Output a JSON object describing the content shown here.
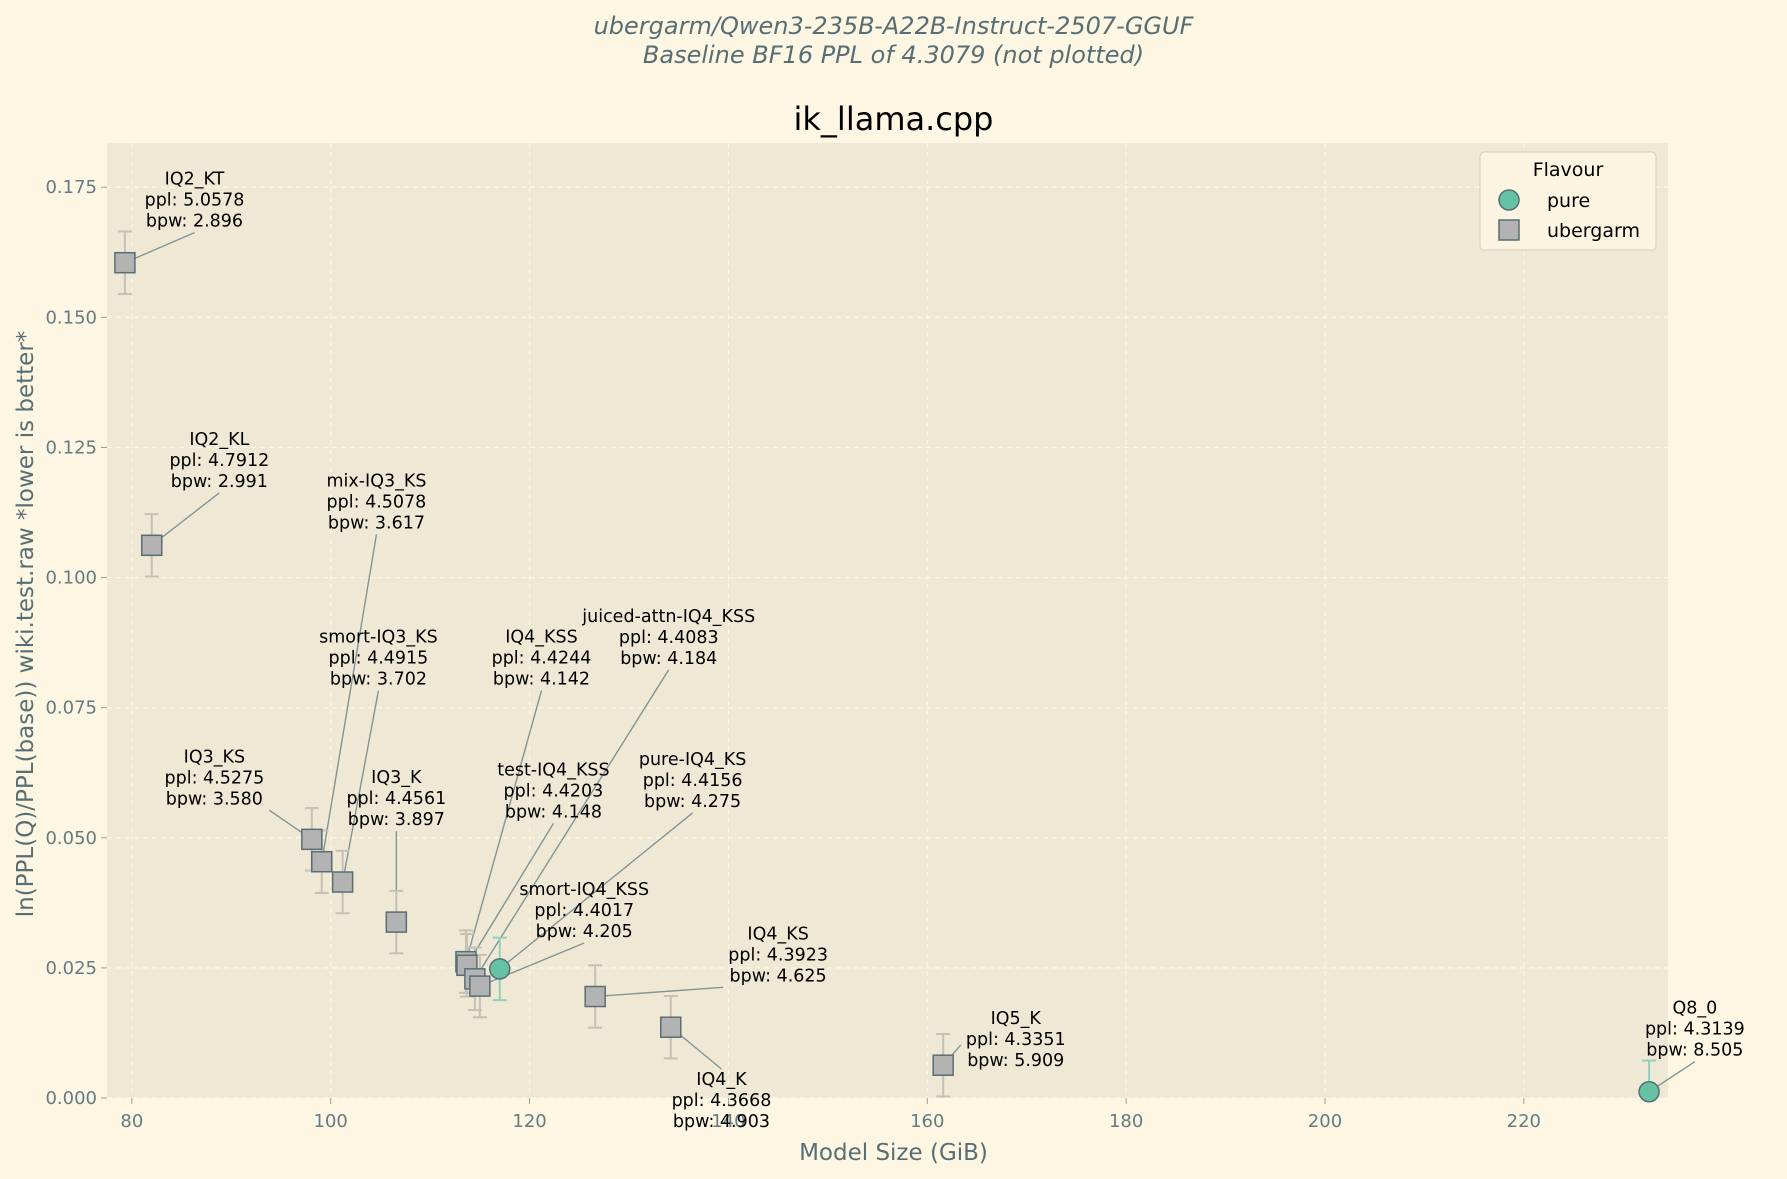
{
  "chart_data": {
    "type": "scatter",
    "suptitle": [
      "ubergarm/Qwen3-235B-A22B-Instruct-2507-GGUF",
      "Baseline BF16 PPL of 4.3079 (not plotted)"
    ],
    "title": "ik_llama.cpp",
    "xlabel": "Model Size (GiB)",
    "ylabel": "ln(PPL(Q)/PPL(base)) wiki.test.raw *lower is better*",
    "xlim": [
      77.5,
      234.5
    ],
    "ylim": [
      0.0,
      0.1835
    ],
    "x_ticks": [
      80,
      100,
      120,
      140,
      160,
      180,
      200,
      220
    ],
    "x_tick_labels": [
      "80",
      "100",
      "120",
      "140",
      "160",
      "180",
      "200",
      "220"
    ],
    "y_ticks": [
      0.0,
      0.025,
      0.05,
      0.075,
      0.1,
      0.125,
      0.15,
      0.175
    ],
    "y_tick_labels": [
      "0.000",
      "0.025",
      "0.050",
      "0.075",
      "0.100",
      "0.125",
      "0.150",
      "0.175"
    ],
    "grid": true,
    "legend": {
      "title": "Flavour",
      "position": "top-right",
      "entries": [
        {
          "label": "pure",
          "marker": "circle",
          "color": "#66c2a5"
        },
        {
          "label": "ubergarm",
          "marker": "square",
          "color": "#b3b3b3"
        }
      ]
    },
    "colors": {
      "pure": "#66c2a5",
      "ubergarm": "#b3b3b3",
      "edge": "#586e75",
      "error_ubergarm": "#c5c0b4",
      "error_pure": "#8fd0bb",
      "leader": "#839496"
    },
    "points": [
      {
        "name": "IQ2_KT",
        "flavour": "ubergarm",
        "x": 79.3,
        "y": 0.1605,
        "yerr": 0.006,
        "label": [
          "IQ2_KT",
          "ppl: 5.0578",
          "bpw: 2.896"
        ],
        "label_at": [
          86.3,
          0.1755
        ]
      },
      {
        "name": "IQ2_KL",
        "flavour": "ubergarm",
        "x": 82.0,
        "y": 0.1062,
        "yerr": 0.006,
        "label": [
          "IQ2_KL",
          "ppl: 4.7912",
          "bpw: 2.991"
        ],
        "label_at": [
          88.8,
          0.1255
        ]
      },
      {
        "name": "mix-IQ3_KS",
        "flavour": "ubergarm",
        "x": 99.1,
        "y": 0.0454,
        "yerr": 0.006,
        "label": [
          "mix-IQ3_KS",
          "ppl: 4.5078",
          "bpw: 3.617"
        ],
        "label_at": [
          104.6,
          0.1175
        ]
      },
      {
        "name": "smort-IQ3_KS",
        "flavour": "ubergarm",
        "x": 101.2,
        "y": 0.0415,
        "yerr": 0.006,
        "label": [
          "smort-IQ3_KS",
          "ppl: 4.4915",
          "bpw: 3.702"
        ],
        "label_at": [
          104.8,
          0.0875
        ]
      },
      {
        "name": "IQ3_KS",
        "flavour": "ubergarm",
        "x": 98.1,
        "y": 0.0497,
        "yerr": 0.006,
        "label": [
          "IQ3_KS",
          "ppl: 4.5275",
          "bpw: 3.580"
        ],
        "label_at": [
          88.3,
          0.0645
        ]
      },
      {
        "name": "IQ3_K",
        "flavour": "ubergarm",
        "x": 106.6,
        "y": 0.0338,
        "yerr": 0.006,
        "label": [
          "IQ3_K",
          "ppl: 4.4561",
          "bpw: 3.897"
        ],
        "label_at": [
          106.6,
          0.0605
        ]
      },
      {
        "name": "IQ4_KSS",
        "flavour": "ubergarm",
        "x": 113.6,
        "y": 0.0262,
        "yerr": 0.006,
        "label": [
          "IQ4_KSS",
          "ppl: 4.4244",
          "bpw: 4.142"
        ],
        "label_at": [
          121.2,
          0.0875
        ]
      },
      {
        "name": "test-IQ4_KSS",
        "flavour": "ubergarm",
        "x": 113.7,
        "y": 0.0255,
        "yerr": 0.006,
        "label": [
          "test-IQ4_KSS",
          "ppl: 4.4203",
          "bpw: 4.148"
        ],
        "label_at": [
          122.4,
          0.062
        ]
      },
      {
        "name": "juiced-attn-IQ4_KSS",
        "flavour": "ubergarm",
        "x": 114.5,
        "y": 0.0229,
        "yerr": 0.006,
        "label": [
          "juiced-attn-IQ4_KSS",
          "ppl: 4.4083",
          "bpw: 4.184"
        ],
        "label_at": [
          134.0,
          0.0915
        ]
      },
      {
        "name": "smort-IQ4_KSS",
        "flavour": "ubergarm",
        "x": 115.0,
        "y": 0.0215,
        "yerr": 0.006,
        "label": [
          "smort-IQ4_KSS",
          "ppl: 4.4017",
          "bpw: 4.205"
        ],
        "label_at": [
          125.5,
          0.039
        ]
      },
      {
        "name": "pure-IQ4_KS",
        "flavour": "pure",
        "x": 117.0,
        "y": 0.0248,
        "yerr": 0.006,
        "label": [
          "pure-IQ4_KS",
          "ppl: 4.4156",
          "bpw: 4.275"
        ],
        "label_at": [
          136.4,
          0.064
        ]
      },
      {
        "name": "IQ4_KS",
        "flavour": "ubergarm",
        "x": 126.6,
        "y": 0.0195,
        "yerr": 0.006,
        "label": [
          "IQ4_KS",
          "ppl: 4.3923",
          "bpw: 4.625"
        ],
        "label_at": [
          145.0,
          0.0305
        ]
      },
      {
        "name": "IQ4_K",
        "flavour": "ubergarm",
        "x": 134.2,
        "y": 0.0136,
        "yerr": 0.006,
        "label": [
          "IQ4_K",
          "ppl: 4.3668",
          "bpw: 4.903"
        ],
        "label_at": [
          139.3,
          0.0025
        ]
      },
      {
        "name": "IQ5_K",
        "flavour": "ubergarm",
        "x": 161.6,
        "y": 0.0063,
        "yerr": 0.006,
        "label": [
          "IQ5_K",
          "ppl: 4.3351",
          "bpw: 5.909"
        ],
        "label_at": [
          168.9,
          0.0142
        ]
      },
      {
        "name": "Q8_0",
        "flavour": "pure",
        "x": 232.6,
        "y": 0.0012,
        "yerr": 0.006,
        "label": [
          "Q8_0",
          "ppl: 4.3139",
          "bpw: 8.505"
        ],
        "label_at": [
          237.2,
          0.0162
        ]
      }
    ]
  }
}
